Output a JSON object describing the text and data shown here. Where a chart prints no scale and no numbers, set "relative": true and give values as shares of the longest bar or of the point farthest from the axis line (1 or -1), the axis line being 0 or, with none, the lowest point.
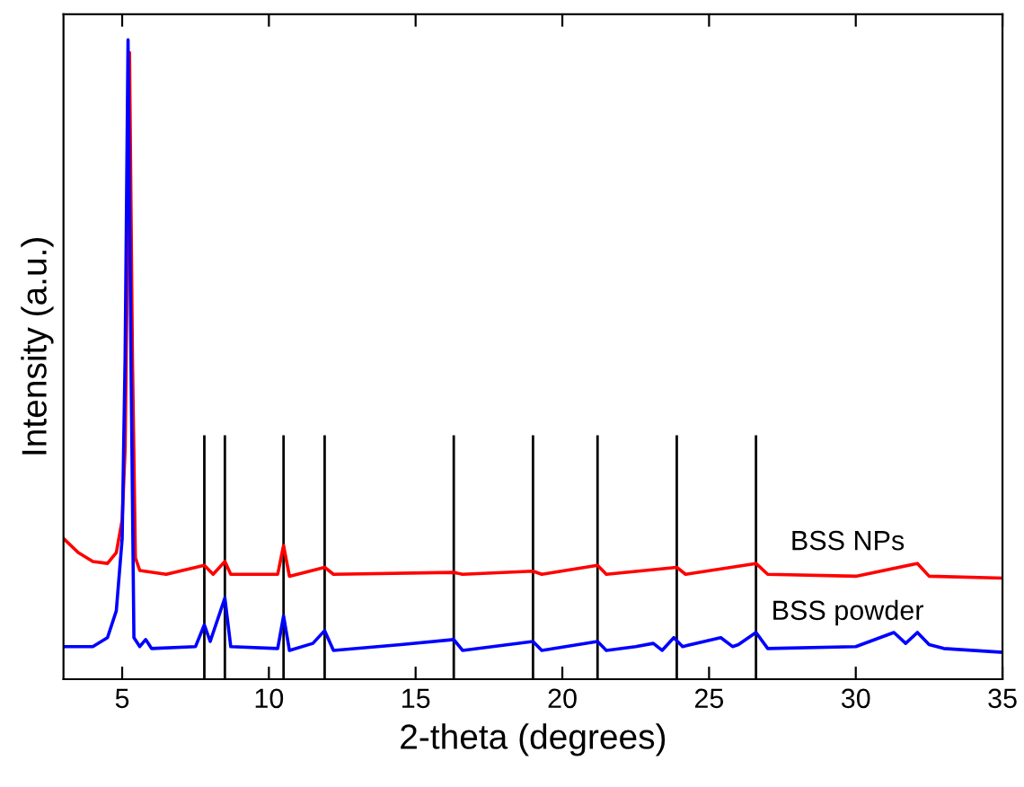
{
  "chart_data": {
    "type": "line",
    "xlabel": "2-theta (degrees)",
    "ylabel": "Intensity (a.u.)",
    "relative": true,
    "xlim": [
      3,
      35
    ],
    "xticks": [
      5,
      10,
      15,
      20,
      25,
      30,
      35
    ],
    "grid": false,
    "legend": false,
    "marker": "none",
    "line_style": "solid",
    "ref_lines": [
      {
        "axis": "x",
        "value": 7.8,
        "color": "#000000"
      },
      {
        "axis": "x",
        "value": 8.5,
        "color": "#000000"
      },
      {
        "axis": "x",
        "value": 10.5,
        "color": "#000000"
      },
      {
        "axis": "x",
        "value": 11.9,
        "color": "#000000"
      },
      {
        "axis": "x",
        "value": 16.3,
        "color": "#000000"
      },
      {
        "axis": "x",
        "value": 19.0,
        "color": "#000000"
      },
      {
        "axis": "x",
        "value": 21.2,
        "color": "#000000"
      },
      {
        "axis": "x",
        "value": 23.9,
        "color": "#000000"
      },
      {
        "axis": "x",
        "value": 26.6,
        "color": "#000000"
      }
    ],
    "series": [
      {
        "name": "BSS NPs",
        "color": "#ff0000",
        "x": [
          3,
          3.5,
          4.0,
          4.5,
          4.8,
          5.0,
          5.1,
          5.2,
          5.25,
          5.35,
          5.45,
          5.6,
          6.5,
          7.8,
          8.1,
          8.5,
          8.7,
          10.3,
          10.5,
          10.7,
          11.9,
          12.2,
          16.3,
          16.6,
          19.0,
          19.3,
          21.2,
          21.5,
          23.9,
          24.2,
          26.6,
          27.0,
          30,
          32.1,
          32.5,
          35
        ],
        "values": [
          0.22,
          0.198,
          0.184,
          0.181,
          0.198,
          0.249,
          0.36,
          0.73,
          0.98,
          0.503,
          0.19,
          0.17,
          0.164,
          0.178,
          0.164,
          0.184,
          0.164,
          0.164,
          0.209,
          0.161,
          0.175,
          0.164,
          0.167,
          0.164,
          0.169,
          0.164,
          0.178,
          0.164,
          0.175,
          0.164,
          0.181,
          0.164,
          0.161,
          0.181,
          0.161,
          0.158
        ]
      },
      {
        "name": "BSS powder",
        "color": "#0000ff",
        "x": [
          3,
          4.0,
          4.5,
          4.8,
          5.0,
          5.1,
          5.2,
          5.3,
          5.4,
          5.6,
          5.8,
          6.0,
          7.5,
          7.8,
          8.0,
          8.5,
          8.7,
          10.3,
          10.5,
          10.7,
          11.5,
          11.9,
          12.2,
          14.5,
          16.3,
          16.6,
          19.0,
          19.3,
          21.2,
          21.5,
          22.5,
          23.1,
          23.4,
          23.8,
          24.1,
          25.4,
          25.8,
          26.0,
          26.6,
          27,
          30,
          31.3,
          31.7,
          32.1,
          32.5,
          33,
          35
        ],
        "values": [
          0.051,
          0.051,
          0.065,
          0.107,
          0.22,
          0.503,
          1.0,
          0.503,
          0.065,
          0.051,
          0.062,
          0.048,
          0.051,
          0.085,
          0.059,
          0.127,
          0.051,
          0.048,
          0.099,
          0.045,
          0.056,
          0.076,
          0.045,
          0.054,
          0.062,
          0.045,
          0.059,
          0.045,
          0.059,
          0.045,
          0.051,
          0.056,
          0.045,
          0.065,
          0.051,
          0.065,
          0.051,
          0.054,
          0.073,
          0.048,
          0.051,
          0.073,
          0.056,
          0.073,
          0.054,
          0.048,
          0.042
        ]
      }
    ]
  }
}
